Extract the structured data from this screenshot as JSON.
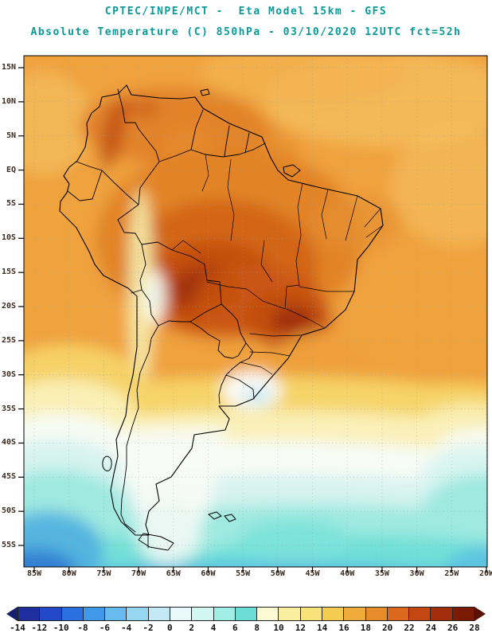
{
  "header": {
    "line1": "CPTEC/INPE/MCT -  Eta Model 15km - GFS",
    "line2": "Absolute Temperature (C) 850hPa - 03/10/2020 12UTC fct=52h",
    "text_color": "#0a9a9a"
  },
  "map": {
    "lat_labels": [
      "15N",
      "10N",
      "5N",
      "EQ",
      "5S",
      "10S",
      "15S",
      "20S",
      "25S",
      "30S",
      "35S",
      "40S",
      "45S",
      "50S",
      "55S"
    ],
    "lon_labels": [
      "85W",
      "80W",
      "75W",
      "70W",
      "65W",
      "60W",
      "55W",
      "50W",
      "45W",
      "40W",
      "35W",
      "30W",
      "25W",
      "20W"
    ]
  },
  "colorbar": {
    "labels": [
      "-14",
      "-12",
      "-10",
      "-8",
      "-6",
      "-4",
      "-2",
      "0",
      "2",
      "4",
      "6",
      "8",
      "10",
      "12",
      "14",
      "16",
      "18",
      "20",
      "22",
      "24",
      "26",
      "28"
    ],
    "colors": [
      "#1E2E9E",
      "#2349C9",
      "#2A70E0",
      "#3F98E8",
      "#67BBEE",
      "#97D6F1",
      "#C3E9F6",
      "#EAF9FB",
      "#D2F6F1",
      "#A0EDE5",
      "#6CDED6",
      "#FCFAD2",
      "#FAEFA0",
      "#F8E27A",
      "#F5CC52",
      "#F0AC3A",
      "#E78C2A",
      "#DB681D",
      "#C44713",
      "#A22E0B",
      "#7C1A05"
    ],
    "left_arrow_color": "#15206F",
    "right_arrow_color": "#5A1103"
  }
}
